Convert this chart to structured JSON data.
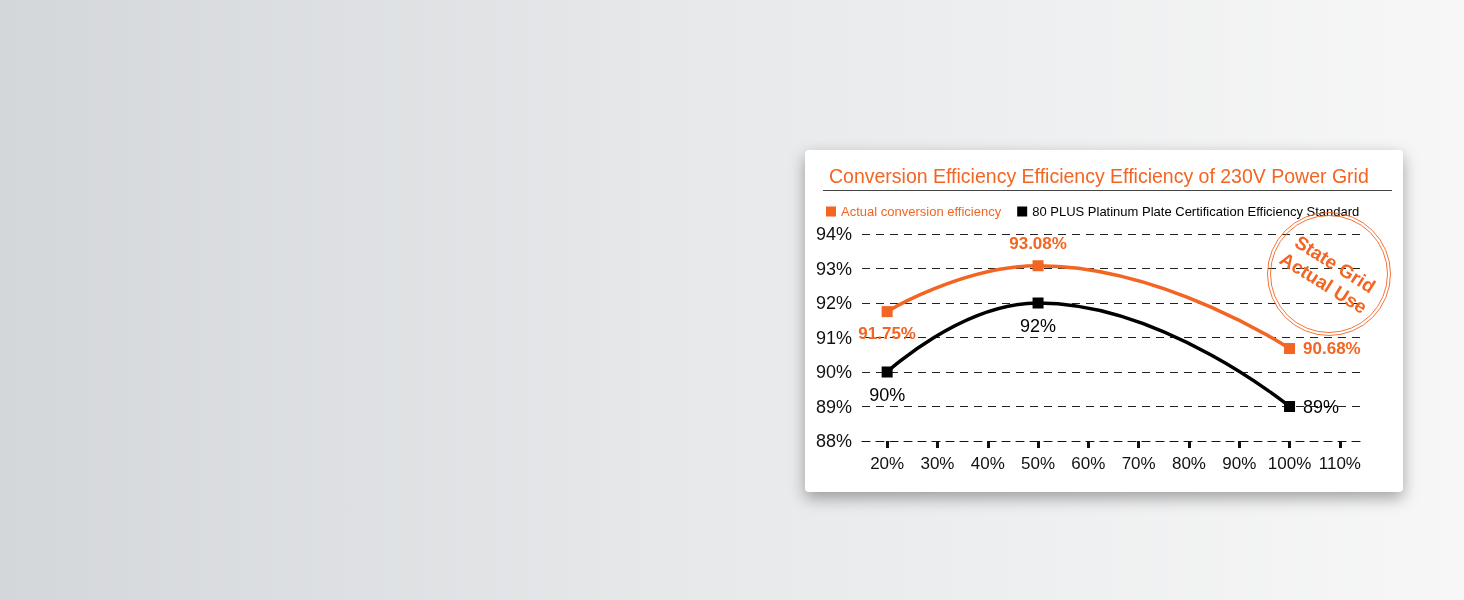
{
  "chart_data": {
    "type": "line",
    "title": "Conversion Efficiency Efficiency Efficiency of 230V Power Grid",
    "categories": [
      "20%",
      "30%",
      "40%",
      "50%",
      "60%",
      "70%",
      "80%",
      "90%",
      "100%",
      "110%"
    ],
    "series": [
      {
        "name": "Actual conversion efficiency",
        "color": "#f26522",
        "values": [
          91.75,
          null,
          null,
          93.08,
          null,
          null,
          null,
          null,
          90.68,
          null
        ],
        "value_labels": [
          "91.75%",
          null,
          null,
          "93.08%",
          null,
          null,
          null,
          null,
          "90.68%",
          null
        ]
      },
      {
        "name": "80 PLUS Platinum Plate Certification Efficiency Standard",
        "color": "#000000",
        "values": [
          90,
          null,
          null,
          92,
          null,
          null,
          null,
          null,
          89,
          null
        ],
        "value_labels": [
          "90%",
          null,
          null,
          "92%",
          null,
          null,
          null,
          null,
          "89%",
          null
        ]
      }
    ],
    "ylim": [
      88,
      94
    ],
    "yticks": [
      {
        "value": 88,
        "label": "88%"
      },
      {
        "value": 89,
        "label": "89%"
      },
      {
        "value": 90,
        "label": "90%"
      },
      {
        "value": 91,
        "label": "91%"
      },
      {
        "value": 92,
        "label": "92%"
      },
      {
        "value": 93,
        "label": "93%"
      },
      {
        "value": 94,
        "label": "94%"
      }
    ],
    "grid": "y",
    "legend": "top left",
    "marker": "square",
    "line_style": "solid",
    "annotations": [
      "State Grid Actual Use"
    ]
  }
}
